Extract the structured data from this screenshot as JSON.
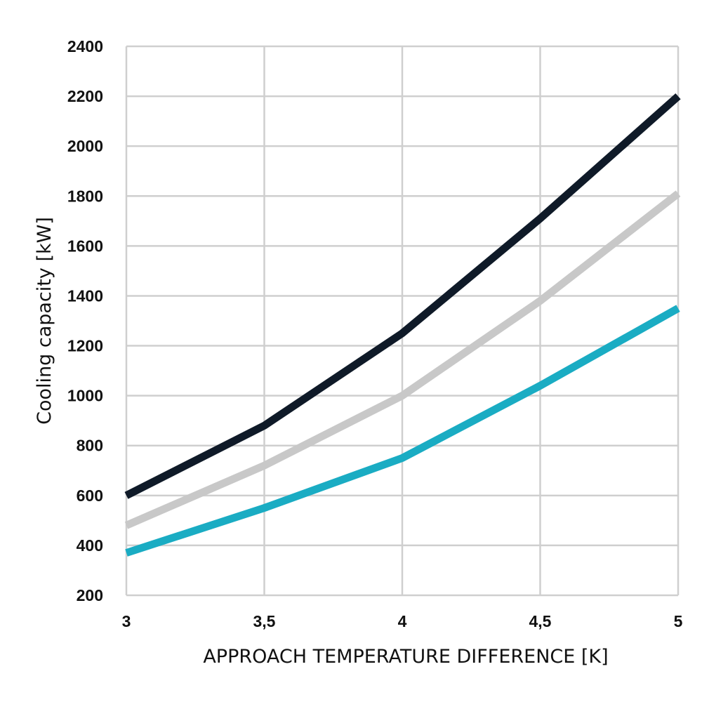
{
  "chart_data": {
    "type": "line",
    "xlabel": "APPROACH TEMPERATURE DIFFERENCE [K]",
    "ylabel": "Cooling capacity [kW]",
    "x": [
      3,
      3.5,
      4,
      4.5,
      5
    ],
    "x_tick_labels": [
      "3",
      "3,5",
      "4",
      "4,5",
      "5"
    ],
    "y_tick_labels": [
      "200",
      "400",
      "600",
      "800",
      "1000",
      "1200",
      "1400",
      "1600",
      "1800",
      "2000",
      "2200",
      "2400"
    ],
    "ylim": [
      200,
      2400
    ],
    "xlim": [
      3,
      5
    ],
    "grid": true,
    "legend": "none",
    "series": [
      {
        "color": "#0f1a28",
        "values": [
          600,
          880,
          1250,
          1710,
          2200
        ]
      },
      {
        "color": "#c8c8c8",
        "values": [
          480,
          720,
          1000,
          1380,
          1810
        ]
      },
      {
        "color": "#1aacc3",
        "values": [
          370,
          550,
          750,
          1040,
          1350
        ]
      }
    ]
  }
}
